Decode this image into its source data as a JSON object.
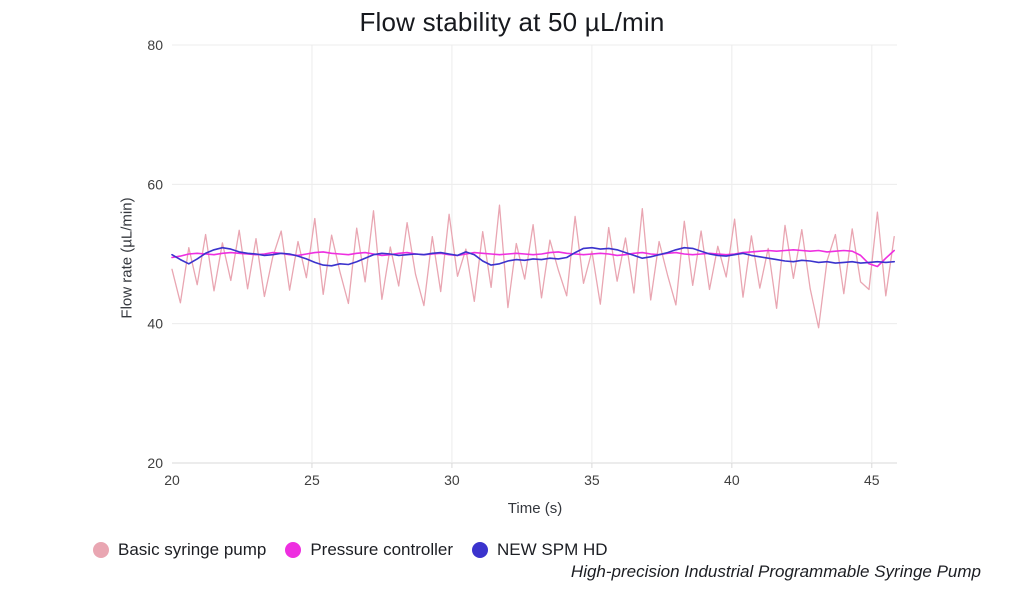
{
  "chart_data": {
    "type": "line",
    "title": "Flow stability at 50 µL/min",
    "xlabel": "Time (s)",
    "ylabel": "Flow rate (µL/min)",
    "xlim": [
      20,
      45.9
    ],
    "ylim": [
      20,
      80
    ],
    "x_ticks": [
      20,
      25,
      30,
      35,
      40,
      45
    ],
    "y_ticks": [
      20,
      40,
      60,
      80
    ],
    "grid": true,
    "legend_position": "bottom",
    "x_start": 20,
    "x_step": 0.3,
    "series": [
      {
        "name": "Basic syringe pump",
        "color": "#e9a6b2",
        "width": 1.3,
        "values": [
          47.8,
          43.0,
          50.9,
          45.6,
          52.8,
          44.7,
          51.6,
          46.2,
          53.4,
          45.0,
          52.2,
          43.9,
          49.6,
          53.3,
          44.8,
          51.8,
          46.6,
          55.1,
          44.2,
          52.7,
          47.4,
          42.9,
          53.7,
          46.0,
          56.2,
          43.5,
          51.0,
          45.4,
          54.5,
          47.1,
          42.6,
          52.5,
          44.6,
          55.7,
          46.8,
          50.7,
          43.2,
          53.2,
          45.2,
          57.0,
          42.3,
          51.5,
          46.4,
          54.2,
          43.7,
          52.0,
          47.7,
          44.0,
          55.4,
          45.8,
          50.4,
          42.8,
          53.8,
          46.1,
          52.3,
          44.4,
          56.5,
          43.4,
          51.8,
          47.0,
          42.7,
          54.7,
          45.5,
          53.3,
          44.9,
          51.1,
          46.7,
          55.0,
          43.8,
          52.6,
          45.1,
          50.8,
          42.2,
          54.1,
          46.5,
          53.5,
          45.0,
          39.4,
          49.0,
          52.8,
          44.3,
          53.6,
          46.0,
          44.9,
          56.0,
          44.0,
          52.5
        ]
      },
      {
        "name": "Pressure controller",
        "color": "#ee2fe0",
        "width": 1.6,
        "values": [
          49.5,
          49.7,
          50.0,
          50.1,
          50.0,
          49.9,
          50.1,
          50.2,
          50.1,
          50.0,
          49.9,
          50.0,
          50.2,
          50.1,
          49.9,
          49.8,
          50.0,
          50.2,
          50.3,
          50.1,
          50.0,
          49.9,
          50.1,
          50.2,
          50.0,
          49.8,
          49.9,
          50.1,
          50.2,
          50.0,
          49.9,
          50.0,
          50.1,
          49.9,
          49.8,
          50.0,
          50.2,
          50.1,
          50.0,
          49.9,
          50.0,
          50.1,
          50.0,
          49.9,
          50.0,
          50.2,
          50.3,
          50.1,
          50.0,
          49.9,
          50.0,
          50.1,
          50.0,
          49.8,
          49.9,
          50.1,
          50.2,
          50.0,
          49.9,
          50.1,
          50.2,
          50.0,
          49.9,
          50.0,
          50.1,
          50.0,
          49.9,
          50.0,
          50.2,
          50.3,
          50.4,
          50.5,
          50.4,
          50.5,
          50.6,
          50.5,
          50.4,
          50.5,
          50.3,
          50.4,
          50.5,
          50.4,
          49.8,
          48.6,
          48.2,
          49.4,
          50.5
        ]
      },
      {
        "name": "NEW SPM HD",
        "color": "#3b33cd",
        "width": 1.6,
        "values": [
          49.9,
          49.2,
          48.6,
          49.3,
          50.1,
          50.6,
          50.9,
          50.7,
          50.3,
          50.1,
          50.0,
          49.8,
          49.9,
          50.1,
          50.0,
          49.7,
          49.3,
          48.8,
          48.4,
          48.3,
          48.6,
          48.5,
          48.9,
          49.4,
          49.9,
          50.1,
          50.0,
          49.8,
          49.9,
          50.0,
          49.9,
          50.1,
          50.2,
          50.0,
          49.8,
          50.3,
          49.9,
          49.0,
          48.4,
          48.6,
          49.0,
          49.2,
          49.1,
          49.3,
          49.2,
          49.4,
          49.3,
          49.5,
          50.2,
          50.8,
          50.9,
          50.7,
          50.8,
          50.6,
          50.2,
          49.8,
          49.4,
          49.6,
          49.9,
          50.2,
          50.6,
          50.9,
          50.8,
          50.4,
          50.0,
          49.8,
          49.7,
          49.9,
          50.1,
          49.8,
          49.6,
          49.4,
          49.2,
          49.0,
          48.9,
          49.1,
          49.0,
          48.8,
          48.9,
          48.7,
          48.8,
          48.9,
          48.7,
          48.8,
          48.9,
          48.8,
          48.9
        ]
      }
    ],
    "annotation": "High-precision Industrial Programmable Syringe Pump"
  },
  "style": {
    "grid_color": "#ececec",
    "axis_color": "#d9d9d9",
    "tick_label_color": "#404040"
  }
}
